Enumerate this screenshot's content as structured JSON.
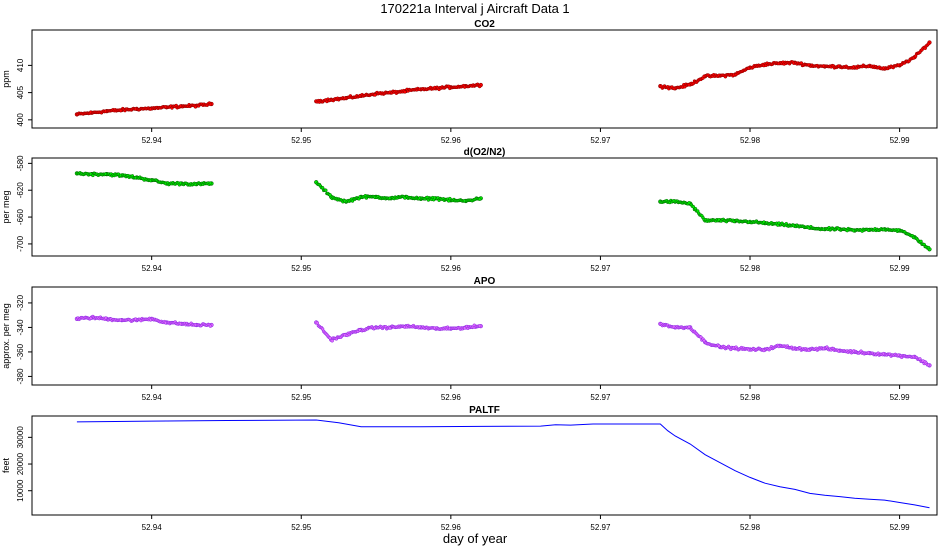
{
  "page": {
    "title": "170221a   Interval j Aircraft Data 1",
    "xlabel": "day of year"
  },
  "colors": {
    "co2": "#ff0000",
    "o2n2": "#00ee00",
    "apo": "#e066ff",
    "paltf": "#0000ff",
    "outline": "#000000"
  },
  "chart_data": [
    {
      "type": "scatter",
      "title": "CO2",
      "ylabel": "ppm",
      "xlim": [
        52.932,
        52.9925
      ],
      "ylim": [
        398.5,
        416.5
      ],
      "xticks": [
        52.94,
        52.95,
        52.96,
        52.97,
        52.98,
        52.99
      ],
      "xtick_labels": [
        "52.94",
        "52.95",
        "52.96",
        "52.97",
        "52.98",
        "52.99"
      ],
      "yticks": [
        400,
        405,
        410
      ],
      "ytick_labels": [
        "400",
        "405",
        "410"
      ],
      "series": [
        {
          "color": "red",
          "x": [
            52.935,
            52.936,
            52.937,
            52.938,
            52.939,
            52.94,
            52.941,
            52.942,
            52.943,
            52.944,
            52.951,
            52.952,
            52.953,
            52.954,
            52.955,
            52.956,
            52.957,
            52.958,
            52.959,
            52.96,
            52.961,
            52.962,
            52.974,
            52.975,
            52.976,
            52.977,
            52.978,
            52.979,
            52.98,
            52.981,
            52.982,
            52.983,
            52.984,
            52.985,
            52.986,
            52.987,
            52.988,
            52.989,
            52.99,
            52.991,
            52.992
          ],
          "y": [
            401.0,
            401.3,
            401.6,
            401.8,
            402.0,
            402.1,
            402.3,
            402.5,
            402.6,
            402.9,
            403.4,
            403.7,
            404.0,
            404.4,
            404.8,
            405.0,
            405.3,
            405.6,
            405.8,
            406.0,
            406.2,
            406.4,
            406.2,
            405.8,
            406.5,
            408.0,
            408.1,
            408.3,
            409.6,
            410.2,
            410.4,
            410.5,
            410.0,
            409.8,
            409.8,
            409.6,
            409.9,
            409.4,
            410.0,
            411.5,
            414.2
          ]
        }
      ]
    },
    {
      "type": "scatter",
      "title": "d(O2/N2)",
      "ylabel": "per meg",
      "xlim": [
        52.932,
        52.9925
      ],
      "ylim": [
        -718,
        -572
      ],
      "xticks": [
        52.94,
        52.95,
        52.96,
        52.97,
        52.98,
        52.99
      ],
      "xtick_labels": [
        "52.94",
        "52.95",
        "52.96",
        "52.97",
        "52.98",
        "52.99"
      ],
      "yticks": [
        -580,
        -620,
        -660,
        -700
      ],
      "ytick_labels": [
        "-580",
        "-620",
        "-660",
        "-700"
      ],
      "series": [
        {
          "color": "green",
          "x": [
            52.935,
            52.936,
            52.937,
            52.938,
            52.939,
            52.94,
            52.941,
            52.942,
            52.943,
            52.944,
            52.951,
            52.952,
            52.953,
            52.954,
            52.955,
            52.956,
            52.957,
            52.958,
            52.959,
            52.96,
            52.961,
            52.962,
            52.974,
            52.975,
            52.976,
            52.977,
            52.978,
            52.979,
            52.98,
            52.981,
            52.982,
            52.983,
            52.984,
            52.985,
            52.986,
            52.987,
            52.988,
            52.989,
            52.99,
            52.991,
            52.992
          ],
          "y": [
            -595,
            -596,
            -596,
            -598,
            -601,
            -605,
            -610,
            -610,
            -611,
            -610,
            -608,
            -630,
            -637,
            -630,
            -630,
            -632,
            -630,
            -633,
            -632,
            -635,
            -636,
            -632,
            -637,
            -637,
            -640,
            -665,
            -665,
            -666,
            -667,
            -669,
            -671,
            -673,
            -676,
            -678,
            -678,
            -680,
            -679,
            -678,
            -680,
            -690,
            -708
          ]
        }
      ]
    },
    {
      "type": "scatter",
      "title": "APO",
      "ylabel": "approx. per meg",
      "xlim": [
        52.932,
        52.9925
      ],
      "ylim": [
        -387,
        -307
      ],
      "xticks": [
        52.94,
        52.95,
        52.96,
        52.97,
        52.98,
        52.99
      ],
      "xtick_labels": [
        "52.94",
        "52.95",
        "52.96",
        "52.97",
        "52.98",
        "52.99"
      ],
      "yticks": [
        -320,
        -340,
        -360,
        -380
      ],
      "ytick_labels": [
        "-320",
        "-340",
        "-360",
        "-380"
      ],
      "series": [
        {
          "color": "violet",
          "x": [
            52.935,
            52.936,
            52.937,
            52.938,
            52.939,
            52.94,
            52.941,
            52.942,
            52.943,
            52.944,
            52.951,
            52.952,
            52.953,
            52.954,
            52.955,
            52.956,
            52.957,
            52.958,
            52.959,
            52.96,
            52.961,
            52.962,
            52.974,
            52.975,
            52.976,
            52.977,
            52.978,
            52.979,
            52.98,
            52.981,
            52.982,
            52.983,
            52.984,
            52.985,
            52.986,
            52.987,
            52.988,
            52.989,
            52.99,
            52.991,
            52.992
          ],
          "y": [
            -333,
            -332,
            -333,
            -334,
            -334,
            -333,
            -336,
            -337,
            -338,
            -338,
            -336,
            -350,
            -346,
            -342,
            -340,
            -340,
            -339,
            -340,
            -341,
            -341,
            -340,
            -339,
            -337,
            -340,
            -340,
            -352,
            -356,
            -357,
            -358,
            -358,
            -355,
            -357,
            -358,
            -357,
            -359,
            -360,
            -361,
            -362,
            -363,
            -364,
            -371
          ]
        }
      ]
    },
    {
      "type": "line",
      "title": "PALTF",
      "ylabel": "feet",
      "xlim": [
        52.932,
        52.9925
      ],
      "ylim": [
        900,
        38000
      ],
      "xticks": [
        52.94,
        52.95,
        52.96,
        52.97,
        52.98,
        52.99
      ],
      "xtick_labels": [
        "52.94",
        "52.95",
        "52.96",
        "52.97",
        "52.98",
        "52.99"
      ],
      "yticks": [
        10000,
        20000,
        30000
      ],
      "ytick_labels": [
        "10000",
        "20000",
        "30000"
      ],
      "series": [
        {
          "color": "blue",
          "x": [
            52.935,
            52.94,
            52.945,
            52.951,
            52.9525,
            52.954,
            52.958,
            52.962,
            52.966,
            52.967,
            52.968,
            52.9695,
            52.974,
            52.9745,
            52.975,
            52.976,
            52.977,
            52.978,
            52.979,
            52.98,
            52.981,
            52.982,
            52.983,
            52.984,
            52.985,
            52.986,
            52.987,
            52.988,
            52.989,
            52.99,
            52.991,
            52.992
          ],
          "y": [
            35800,
            36100,
            36300,
            36500,
            35500,
            34000,
            34000,
            34100,
            34200,
            34700,
            34600,
            35000,
            35000,
            32500,
            30500,
            27500,
            23500,
            20500,
            17500,
            15000,
            12800,
            11500,
            10500,
            9000,
            8300,
            7800,
            7200,
            6800,
            6500,
            5600,
            4700,
            3600
          ]
        }
      ]
    }
  ]
}
